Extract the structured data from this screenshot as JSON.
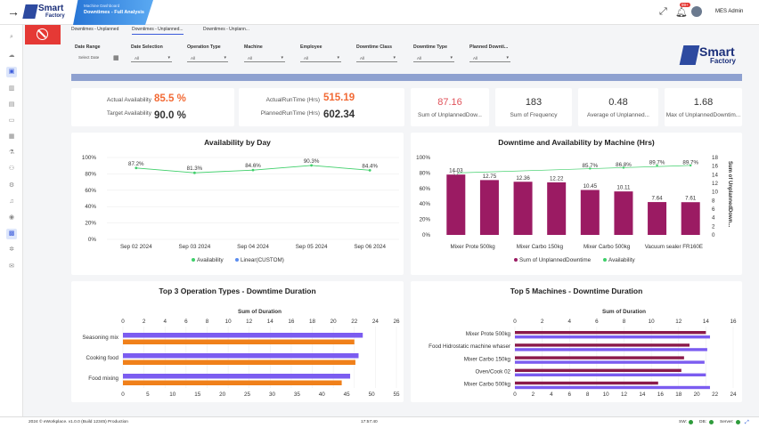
{
  "header": {
    "crumb_parent": "Machine Dashboard",
    "crumb_title": "Downtimes - Full Analysis",
    "notif_count": "99+",
    "user": "MES Admin",
    "logo_text": "Smart",
    "logo_sub": "Factory"
  },
  "tabs": [
    "Downtimes - Unplanned",
    "Downtimes - Unplanned...",
    "Downtimes - Unplann..."
  ],
  "filters": [
    {
      "label": "Date Range",
      "value": "Select Date"
    },
    {
      "label": "Date Selection",
      "value": "All"
    },
    {
      "label": "Operation Type",
      "value": "All"
    },
    {
      "label": "Machine",
      "value": "All"
    },
    {
      "label": "Employee",
      "value": "All"
    },
    {
      "label": "Downtime Class",
      "value": "All"
    },
    {
      "label": "Downtime Type",
      "value": "All"
    },
    {
      "label": "Planned Downti...",
      "value": "All"
    }
  ],
  "kpi1": {
    "l1": "Actual Availability",
    "v1": "85.5 %",
    "l2": "Target Availability",
    "v2": "90.0 %"
  },
  "kpi2": {
    "l1": "ActualRunTime (Hrs)",
    "v1": "515.19",
    "l2": "PlannedRunTime (Hrs)",
    "v2": "602.34"
  },
  "kpis": [
    {
      "value": "87.16",
      "label": "Sum of UnplannedDow..."
    },
    {
      "value": "183",
      "label": "Sum of Frequency"
    },
    {
      "value": "0.48",
      "label": "Average of Unplanned..."
    },
    {
      "value": "1.68",
      "label": "Max of UnplannedDowntim..."
    }
  ],
  "chart_data": [
    {
      "type": "line",
      "title": "Availability by Day",
      "categories": [
        "Sep 02 2024",
        "Sep 03 2024",
        "Sep 04 2024",
        "Sep 05 2024",
        "Sep 06 2024"
      ],
      "series": [
        {
          "name": "Availability",
          "values": [
            87.2,
            81.3,
            84.6,
            90.3,
            84.4
          ]
        }
      ],
      "data_labels": [
        "87.2%",
        "81.3%",
        "84.6%",
        "90.3%",
        "84.4%"
      ],
      "yticks": [
        "100%",
        "80%",
        "60%",
        "40%",
        "20%",
        "0%"
      ],
      "ylim": [
        0,
        100
      ],
      "legend": [
        "Availability",
        "Linear(CUSTOM)"
      ],
      "colors": {
        "Availability": "#3fcf6a",
        "Linear": "#5b8def"
      }
    },
    {
      "type": "bar",
      "title": "Downtime and Availability by Machine (Hrs)",
      "x_labels_shown": [
        "Mixer Prote 500kg",
        "Mixer Carbo 150kg",
        "Mixer Carbo 500kg",
        "Vacuum sealer FR160E"
      ],
      "series": [
        {
          "name": "Sum of UnplannedDowntime",
          "values": [
            14.03,
            12.75,
            12.36,
            12.22,
            10.45,
            10.11,
            7.64,
            7.61
          ]
        },
        {
          "name": "Availability",
          "values": [
            null,
            null,
            null,
            null,
            85.7,
            86.8,
            89.7,
            89.7
          ],
          "labels": [
            "",
            "",
            "",
            "",
            "85.7%",
            "86.8%",
            "89.7%",
            "89.7%"
          ]
        }
      ],
      "yleft": [
        "100%",
        "80%",
        "60%",
        "40%",
        "20%",
        "0%"
      ],
      "yright": [
        "18",
        "16",
        "14",
        "12",
        "10",
        "8",
        "6",
        "4",
        "2",
        "0"
      ],
      "ylabel_right": "Sum of UnplannedDown...",
      "legend": [
        "Sum of UnplannedDowntime",
        "Availability"
      ],
      "colors": {
        "bar": "#9b1b63",
        "line": "#3fcf6a"
      }
    },
    {
      "type": "bar",
      "orientation": "horizontal",
      "title": "Top 3 Operation Types - Downtime Duration",
      "axis_title": "Sum of Duration",
      "categories": [
        "Seasoning mix",
        "Cooking food",
        "Food mixing"
      ],
      "series": [
        {
          "name": "A",
          "values": [
            22.8,
            22.4,
            21.6
          ]
        },
        {
          "name": "B",
          "values": [
            22.0,
            22.1,
            20.8
          ]
        }
      ],
      "top_ticks": [
        "0",
        "2",
        "4",
        "6",
        "8",
        "10",
        "12",
        "14",
        "16",
        "18",
        "20",
        "22",
        "24",
        "26"
      ],
      "bottom_ticks": [
        "0",
        "5",
        "10",
        "15",
        "20",
        "25",
        "30",
        "35",
        "40",
        "45",
        "50",
        "55"
      ],
      "colors": [
        "#7b5cf0",
        "#f0801a"
      ]
    },
    {
      "type": "bar",
      "orientation": "horizontal",
      "title": "Top 5 Machines - Downtime Duration",
      "axis_title": "Sum of Duration",
      "categories": [
        "Mixer Prote 500kg",
        "Food Hidrostatic machine whaser",
        "Mixer Carbo 150kg",
        "Oven/Cook 02",
        "Mixer Carbo 500kg"
      ],
      "series": [
        {
          "name": "A",
          "values": [
            14.0,
            12.8,
            12.4,
            12.2,
            10.5
          ]
        },
        {
          "name": "B",
          "values": [
            14.3,
            14.1,
            13.9,
            14.0,
            14.3
          ]
        }
      ],
      "top_ticks": [
        "0",
        "2",
        "4",
        "6",
        "8",
        "10",
        "12",
        "14",
        "16"
      ],
      "bottom_ticks": [
        "0",
        "2",
        "4",
        "6",
        "8",
        "10",
        "12",
        "14",
        "16",
        "18",
        "20",
        "22",
        "24"
      ],
      "colors": [
        "#8b1a4a",
        "#7b5cf0"
      ]
    }
  ],
  "footer": {
    "left": "2024 © eWorkplace. v1.0.0 (Build 12345) Production",
    "time": "17:57:40",
    "sw": "SW:",
    "db": "DB:",
    "server": "Server:"
  }
}
